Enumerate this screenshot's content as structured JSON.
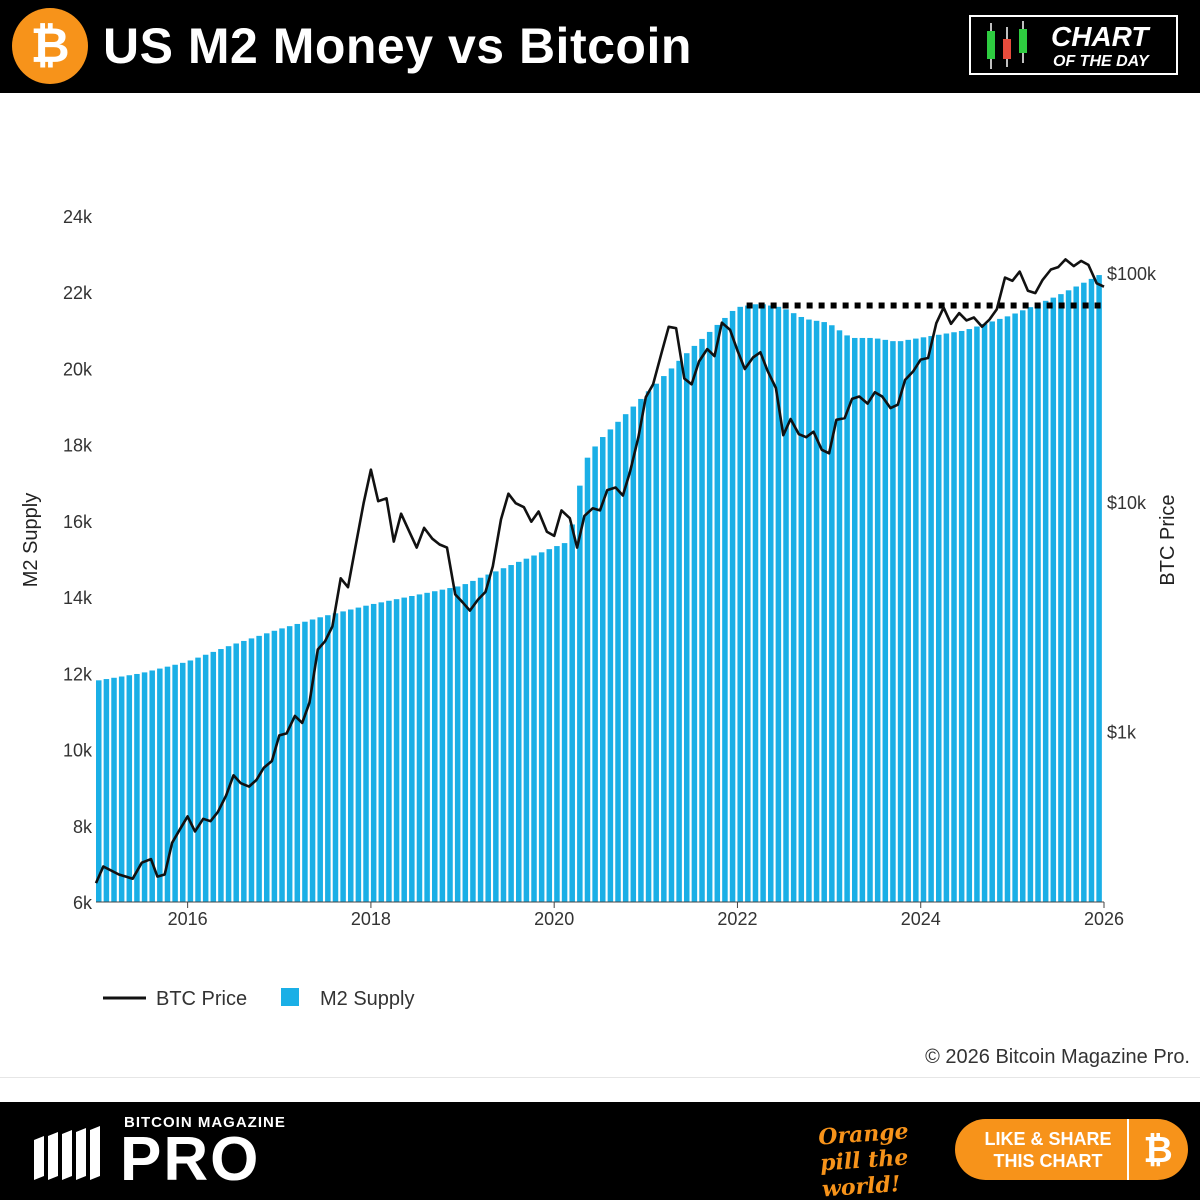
{
  "header": {
    "title": "US M2 Money vs Bitcoin",
    "logo_symbol": "₿",
    "badge_line1": "CHART",
    "badge_line2": "OF THE DAY"
  },
  "colors": {
    "bar": "#1aafe6",
    "line": "#111111",
    "brand_orange": "#f7931a",
    "candle_green": "#2ecc40",
    "candle_red": "#e74c3c"
  },
  "chart_data": {
    "type": "bar+line",
    "title": "US M2 Money vs Bitcoin",
    "left_axis": {
      "label": "M2 Supply",
      "range": [
        6000,
        24000
      ],
      "ticks": [
        6000,
        8000,
        10000,
        12000,
        14000,
        16000,
        18000,
        20000,
        22000,
        24000
      ],
      "tick_labels": [
        "6k",
        "8k",
        "10k",
        "12k",
        "14k",
        "16k",
        "18k",
        "20k",
        "22k",
        "24k"
      ]
    },
    "right_axis": {
      "label": "BTC Price",
      "scale": "log",
      "range": [
        182,
        179000
      ],
      "ticks": [
        1000,
        10000,
        100000
      ],
      "tick_labels": [
        "$1k",
        "$10k",
        "$100k"
      ]
    },
    "x_axis": {
      "range": [
        2015.0,
        2026.0
      ],
      "ticks": [
        2016,
        2018,
        2020,
        2022,
        2024,
        2026
      ],
      "tick_labels": [
        "2016",
        "2018",
        "2020",
        "2022",
        "2024",
        "2026"
      ]
    },
    "m2_knots": [
      [
        2015.0,
        11800
      ],
      [
        2015.5,
        12000
      ],
      [
        2016.0,
        12300
      ],
      [
        2016.5,
        12750
      ],
      [
        2017.0,
        13150
      ],
      [
        2017.5,
        13500
      ],
      [
        2018.0,
        13800
      ],
      [
        2018.5,
        14050
      ],
      [
        2019.0,
        14300
      ],
      [
        2019.5,
        14800
      ],
      [
        2020.0,
        15300
      ],
      [
        2020.16,
        15450
      ],
      [
        2020.25,
        16300
      ],
      [
        2020.33,
        17500
      ],
      [
        2020.5,
        18100
      ],
      [
        2021.0,
        19300
      ],
      [
        2021.5,
        20500
      ],
      [
        2022.0,
        21600
      ],
      [
        2022.25,
        21700
      ],
      [
        2022.5,
        21600
      ],
      [
        2022.75,
        21300
      ],
      [
        2023.0,
        21200
      ],
      [
        2023.25,
        20800
      ],
      [
        2023.5,
        20800
      ],
      [
        2023.75,
        20700
      ],
      [
        2024.0,
        20800
      ],
      [
        2024.5,
        21000
      ],
      [
        2025.0,
        21400
      ],
      [
        2025.5,
        21900
      ],
      [
        2026.0,
        22500
      ]
    ],
    "m2_dotted_level": 21650,
    "m2_dotted_range": [
      2022.1,
      2026.0
    ],
    "btc_points": [
      [
        2015.0,
        220
      ],
      [
        2015.08,
        260
      ],
      [
        2015.25,
        240
      ],
      [
        2015.4,
        230
      ],
      [
        2015.5,
        270
      ],
      [
        2015.6,
        280
      ],
      [
        2015.67,
        235
      ],
      [
        2015.75,
        240
      ],
      [
        2015.83,
        330
      ],
      [
        2015.92,
        380
      ],
      [
        2016.0,
        430
      ],
      [
        2016.08,
        370
      ],
      [
        2016.17,
        420
      ],
      [
        2016.25,
        410
      ],
      [
        2016.33,
        450
      ],
      [
        2016.42,
        530
      ],
      [
        2016.5,
        650
      ],
      [
        2016.58,
        600
      ],
      [
        2016.67,
        580
      ],
      [
        2016.75,
        620
      ],
      [
        2016.83,
        700
      ],
      [
        2016.92,
        750
      ],
      [
        2017.0,
        970
      ],
      [
        2017.08,
        990
      ],
      [
        2017.17,
        1180
      ],
      [
        2017.25,
        1100
      ],
      [
        2017.33,
        1350
      ],
      [
        2017.42,
        2300
      ],
      [
        2017.5,
        2500
      ],
      [
        2017.58,
        2900
      ],
      [
        2017.67,
        4700
      ],
      [
        2017.75,
        4300
      ],
      [
        2017.83,
        6400
      ],
      [
        2017.92,
        10000
      ],
      [
        2018.0,
        14000
      ],
      [
        2018.08,
        10200
      ],
      [
        2018.17,
        10500
      ],
      [
        2018.25,
        6800
      ],
      [
        2018.33,
        9000
      ],
      [
        2018.42,
        7500
      ],
      [
        2018.5,
        6400
      ],
      [
        2018.58,
        7800
      ],
      [
        2018.67,
        7000
      ],
      [
        2018.75,
        6600
      ],
      [
        2018.83,
        6400
      ],
      [
        2018.92,
        4000
      ],
      [
        2019.0,
        3700
      ],
      [
        2019.08,
        3400
      ],
      [
        2019.17,
        3800
      ],
      [
        2019.25,
        4100
      ],
      [
        2019.33,
        5300
      ],
      [
        2019.42,
        8500
      ],
      [
        2019.5,
        11000
      ],
      [
        2019.58,
        10000
      ],
      [
        2019.67,
        9600
      ],
      [
        2019.75,
        8300
      ],
      [
        2019.83,
        9200
      ],
      [
        2019.92,
        7500
      ],
      [
        2020.0,
        7200
      ],
      [
        2020.08,
        9300
      ],
      [
        2020.17,
        8600
      ],
      [
        2020.25,
        6400
      ],
      [
        2020.33,
        8800
      ],
      [
        2020.42,
        9500
      ],
      [
        2020.5,
        9300
      ],
      [
        2020.58,
        11400
      ],
      [
        2020.67,
        11700
      ],
      [
        2020.75,
        10800
      ],
      [
        2020.83,
        13800
      ],
      [
        2020.92,
        19500
      ],
      [
        2021.0,
        29000
      ],
      [
        2021.08,
        33000
      ],
      [
        2021.17,
        45000
      ],
      [
        2021.25,
        58800
      ],
      [
        2021.33,
        58000
      ],
      [
        2021.42,
        35000
      ],
      [
        2021.5,
        33000
      ],
      [
        2021.58,
        41500
      ],
      [
        2021.67,
        47000
      ],
      [
        2021.75,
        43800
      ],
      [
        2021.83,
        61300
      ],
      [
        2021.92,
        57000
      ],
      [
        2022.0,
        46300
      ],
      [
        2022.08,
        38500
      ],
      [
        2022.17,
        43200
      ],
      [
        2022.25,
        45500
      ],
      [
        2022.33,
        37700
      ],
      [
        2022.42,
        31800
      ],
      [
        2022.5,
        19800
      ],
      [
        2022.58,
        23300
      ],
      [
        2022.67,
        20000
      ],
      [
        2022.75,
        19400
      ],
      [
        2022.83,
        20500
      ],
      [
        2022.92,
        17100
      ],
      [
        2023.0,
        16500
      ],
      [
        2023.08,
        23100
      ],
      [
        2023.17,
        23500
      ],
      [
        2023.25,
        28500
      ],
      [
        2023.33,
        29200
      ],
      [
        2023.42,
        27200
      ],
      [
        2023.5,
        30500
      ],
      [
        2023.58,
        29200
      ],
      [
        2023.67,
        26000
      ],
      [
        2023.75,
        26900
      ],
      [
        2023.83,
        34500
      ],
      [
        2023.92,
        37700
      ],
      [
        2024.0,
        42300
      ],
      [
        2024.08,
        43000
      ],
      [
        2024.17,
        61000
      ],
      [
        2024.25,
        71300
      ],
      [
        2024.33,
        60600
      ],
      [
        2024.42,
        67500
      ],
      [
        2024.5,
        62700
      ],
      [
        2024.58,
        64600
      ],
      [
        2024.67,
        58900
      ],
      [
        2024.75,
        63300
      ],
      [
        2024.83,
        70200
      ],
      [
        2024.92,
        96400
      ],
      [
        2025.0,
        93400
      ],
      [
        2025.08,
        102400
      ],
      [
        2025.17,
        84400
      ],
      [
        2025.25,
        82500
      ],
      [
        2025.33,
        94200
      ],
      [
        2025.42,
        104600
      ],
      [
        2025.5,
        107100
      ],
      [
        2025.58,
        115800
      ],
      [
        2025.67,
        108200
      ],
      [
        2025.75,
        114000
      ],
      [
        2025.83,
        109500
      ],
      [
        2025.92,
        91000
      ],
      [
        2026.0,
        88000
      ]
    ],
    "legend": [
      {
        "name": "BTC Price",
        "kind": "line"
      },
      {
        "name": "M2 Supply",
        "kind": "bar"
      }
    ],
    "legend_position": "bottom-left"
  },
  "footer": {
    "copyright": "© 2026 Bitcoin Magazine Pro.",
    "brand_top": "BITCOIN MAGAZINE",
    "brand_pro": "PRO",
    "tagline": "Orange pill the world!",
    "share_button": "LIKE & SHARE THIS CHART",
    "share_symbol": "₿"
  }
}
